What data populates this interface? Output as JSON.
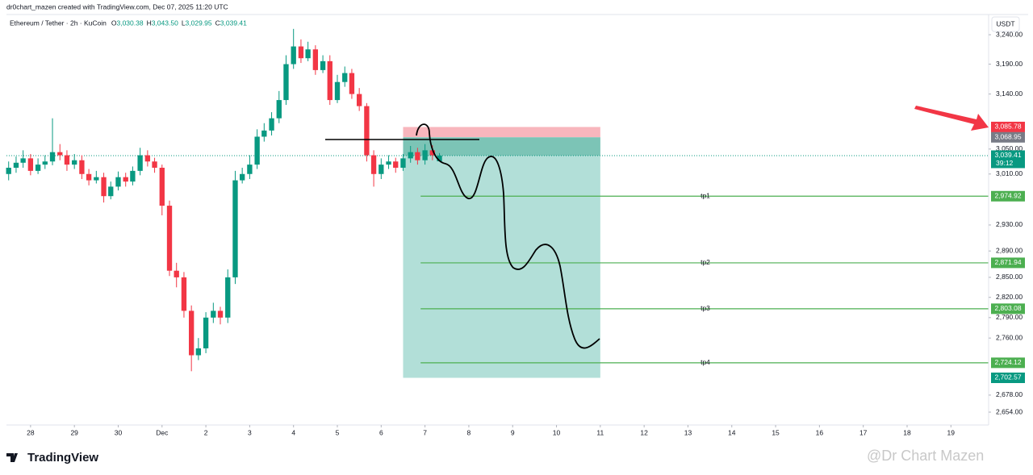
{
  "header": {
    "credit": "dr0chart_mazen created with TradingView.com, Dec 07, 2025 11:20 UTC",
    "logo": "TradingView",
    "watermark": "@Dr Chart Mazen"
  },
  "chart_data": {
    "type": "candlestick",
    "title": "Ethereum / Tether · 2h · KuCoin",
    "ohlc_legend": [
      {
        "label": "O",
        "value": "3,030.38"
      },
      {
        "label": "H",
        "value": "3,043.50"
      },
      {
        "label": "L",
        "value": "3,029.95"
      },
      {
        "label": "C",
        "value": "3,039.41"
      }
    ],
    "currency": "USDT",
    "x": [
      -0.5,
      -0.33,
      -0.17,
      0,
      0.17,
      0.33,
      0.5,
      0.67,
      0.83,
      1,
      1.17,
      1.33,
      1.5,
      1.67,
      1.83,
      2,
      2.17,
      2.33,
      2.5,
      2.67,
      2.83,
      3,
      3.17,
      3.33,
      3.5,
      3.67,
      3.83,
      4,
      4.17,
      4.33,
      4.5,
      4.67,
      4.83,
      5,
      5.17,
      5.33,
      5.5,
      5.67,
      5.83,
      6,
      6.17,
      6.33,
      6.5,
      6.67,
      6.83,
      7,
      7.17,
      7.33,
      7.5,
      7.67,
      7.83,
      8,
      8.17,
      8.33,
      8.5,
      8.67,
      8.83,
      9,
      9.17,
      9.33
    ],
    "open": [
      3010,
      3020,
      3028,
      3035,
      3015,
      3025,
      3030,
      3045,
      3040,
      3025,
      3032,
      3010,
      3000,
      3005,
      2975,
      2990,
      3005,
      2998,
      3015,
      3040,
      3030,
      3020,
      2960,
      2860,
      2850,
      2800,
      2735,
      2745,
      2790,
      2800,
      2790,
      2850,
      3000,
      3010,
      3025,
      3070,
      3080,
      3100,
      3130,
      3190,
      3220,
      3200,
      3215,
      3180,
      3195,
      3130,
      3160,
      3175,
      3140,
      3120,
      3040,
      3010,
      3025,
      3030,
      3020,
      3035,
      3045,
      3032,
      3048,
      3030.38
    ],
    "high": [
      3030,
      3038,
      3048,
      3042,
      3035,
      3040,
      3100,
      3058,
      3048,
      3042,
      3040,
      3018,
      3015,
      3012,
      2998,
      3014,
      3012,
      3022,
      3052,
      3048,
      3036,
      3025,
      2968,
      2872,
      2858,
      2808,
      2760,
      2798,
      2812,
      2806,
      2862,
      3015,
      3020,
      3040,
      3082,
      3092,
      3110,
      3145,
      3205,
      3250,
      3232,
      3228,
      3222,
      3205,
      3205,
      3172,
      3186,
      3182,
      3150,
      3125,
      3048,
      3035,
      3040,
      3036,
      3042,
      3055,
      3052,
      3058,
      3056,
      3043.5
    ],
    "low": [
      3000,
      3012,
      3020,
      3008,
      3010,
      3018,
      3024,
      3032,
      3015,
      3018,
      3002,
      2992,
      2995,
      2965,
      2970,
      2984,
      2990,
      2992,
      3008,
      3022,
      3012,
      2945,
      2852,
      2835,
      2790,
      2712,
      2728,
      2738,
      2782,
      2780,
      2782,
      2840,
      2995,
      3002,
      3018,
      3062,
      3072,
      3092,
      3122,
      3182,
      3192,
      3195,
      3172,
      3175,
      3122,
      3125,
      3152,
      3132,
      3112,
      3030,
      2990,
      3002,
      3018,
      3012,
      3015,
      3028,
      3025,
      3025,
      3032,
      3029.95
    ],
    "close": [
      3020,
      3028,
      3035,
      3015,
      3025,
      3030,
      3045,
      3040,
      3025,
      3032,
      3010,
      3000,
      3005,
      2975,
      2990,
      3005,
      2998,
      3015,
      3040,
      3030,
      3020,
      2960,
      2860,
      2850,
      2800,
      2735,
      2745,
      2790,
      2800,
      2790,
      2850,
      3000,
      3010,
      3025,
      3070,
      3080,
      3100,
      3130,
      3190,
      3220,
      3200,
      3215,
      3180,
      3195,
      3130,
      3160,
      3175,
      3140,
      3120,
      3040,
      3010,
      3025,
      3030,
      3020,
      3035,
      3045,
      3032,
      3048,
      3040,
      3039.41
    ],
    "up_color": "#089981",
    "down_color": "#f23645",
    "xlim": [
      -0.55,
      21.86
    ],
    "xticks": [
      {
        "value": 0,
        "label": "28"
      },
      {
        "value": 1,
        "label": "29"
      },
      {
        "value": 2,
        "label": "30"
      },
      {
        "value": 3,
        "label": "Dec"
      },
      {
        "value": 4,
        "label": "2"
      },
      {
        "value": 5,
        "label": "3"
      },
      {
        "value": 6,
        "label": "4"
      },
      {
        "value": 7,
        "label": "5"
      },
      {
        "value": 8,
        "label": "6"
      },
      {
        "value": 9,
        "label": "7"
      },
      {
        "value": 10,
        "label": "8"
      },
      {
        "value": 11,
        "label": "9"
      },
      {
        "value": 12,
        "label": "10"
      },
      {
        "value": 13,
        "label": "11"
      },
      {
        "value": 14,
        "label": "12"
      },
      {
        "value": 15,
        "label": "13"
      },
      {
        "value": 16,
        "label": "14"
      },
      {
        "value": 17,
        "label": "15"
      },
      {
        "value": 18,
        "label": "16"
      },
      {
        "value": 19,
        "label": "17"
      },
      {
        "value": 20,
        "label": "18"
      },
      {
        "value": 21,
        "label": "19"
      }
    ],
    "ylim": [
      2636,
      3272
    ],
    "log_scale": true,
    "yticks": [
      {
        "value": 3240,
        "label": "3,240.00"
      },
      {
        "value": 3190,
        "label": "3,190.00"
      },
      {
        "value": 3140,
        "label": "3,140.00"
      },
      {
        "value": 3050,
        "label": "3,050.00"
      },
      {
        "value": 3010,
        "label": "3,010.00"
      },
      {
        "value": 2930,
        "label": "2,930.00"
      },
      {
        "value": 2890,
        "label": "2,890.00"
      },
      {
        "value": 2850,
        "label": "2,850.00"
      },
      {
        "value": 2820,
        "label": "2,820.00"
      },
      {
        "value": 2790,
        "label": "2,790.00"
      },
      {
        "value": 2760,
        "label": "2,760.00"
      },
      {
        "value": 2678,
        "label": "2,678.00"
      },
      {
        "value": 2654,
        "label": "2,654.00"
      }
    ],
    "last_price": {
      "value": 3039.41,
      "label": "3,039.41",
      "countdown": "39:12",
      "color": "#089981"
    },
    "position": {
      "start": 8.5,
      "end": 13,
      "stop": {
        "value": 3085.78,
        "label": "3,085.78",
        "color": "#f23645"
      },
      "entry": {
        "value": 3068.95,
        "label": "3,068.95",
        "color": "#787b86"
      },
      "target": {
        "value": 2702.57,
        "label": "2,702.57",
        "color": "#089981"
      }
    },
    "targets_start": 8.9,
    "targets": [
      {
        "name": "tp1",
        "value": 2974.92,
        "label": "2,974.92"
      },
      {
        "name": "tp2",
        "value": 2871.94,
        "label": "2,871.94"
      },
      {
        "name": "tp3",
        "value": 2803.08,
        "label": "2,803.08"
      },
      {
        "name": "tp4",
        "value": 2724.12,
        "label": "2,724.12"
      }
    ],
    "target_color": "#4caf50"
  }
}
